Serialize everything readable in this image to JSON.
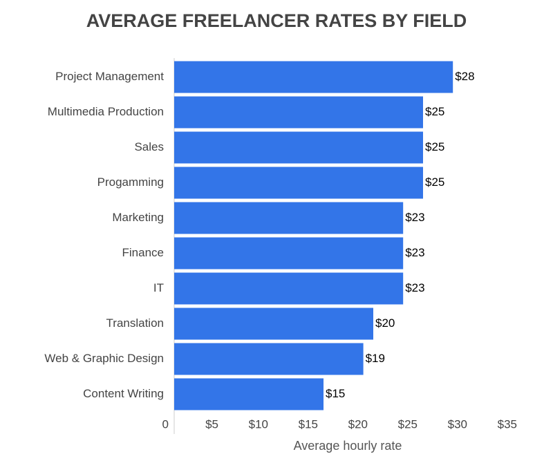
{
  "chart_data": {
    "type": "bar",
    "orientation": "horizontal",
    "title": "AVERAGE FREELANCER RATES BY FIELD",
    "x_label": "Average hourly rate",
    "categories": [
      "Project Management",
      "Multimedia Production",
      "Sales",
      "Progamming",
      "Marketing",
      "Finance",
      "IT",
      "Translation",
      "Web & Graphic Design",
      "Content Writing"
    ],
    "values": [
      28,
      25,
      25,
      25,
      23,
      23,
      23,
      20,
      19,
      15
    ],
    "value_labels": [
      "$28",
      "$25",
      "$25",
      "$25",
      "$23",
      "$23",
      "$23",
      "$20",
      "$19",
      "$15"
    ],
    "color": "#3375e8",
    "xlim": [
      0,
      35
    ],
    "xticks": [
      0,
      {
        "value": 5,
        "label": "$5"
      },
      {
        "value": 10,
        "label": "$10"
      },
      {
        "value": 15,
        "label": "$15"
      },
      {
        "value": 20,
        "label": "$20"
      },
      {
        "value": 25,
        "label": "$25"
      },
      {
        "value": 30,
        "label": "$30"
      },
      {
        "value": 35,
        "label": "$35"
      }
    ],
    "grid": false
  }
}
